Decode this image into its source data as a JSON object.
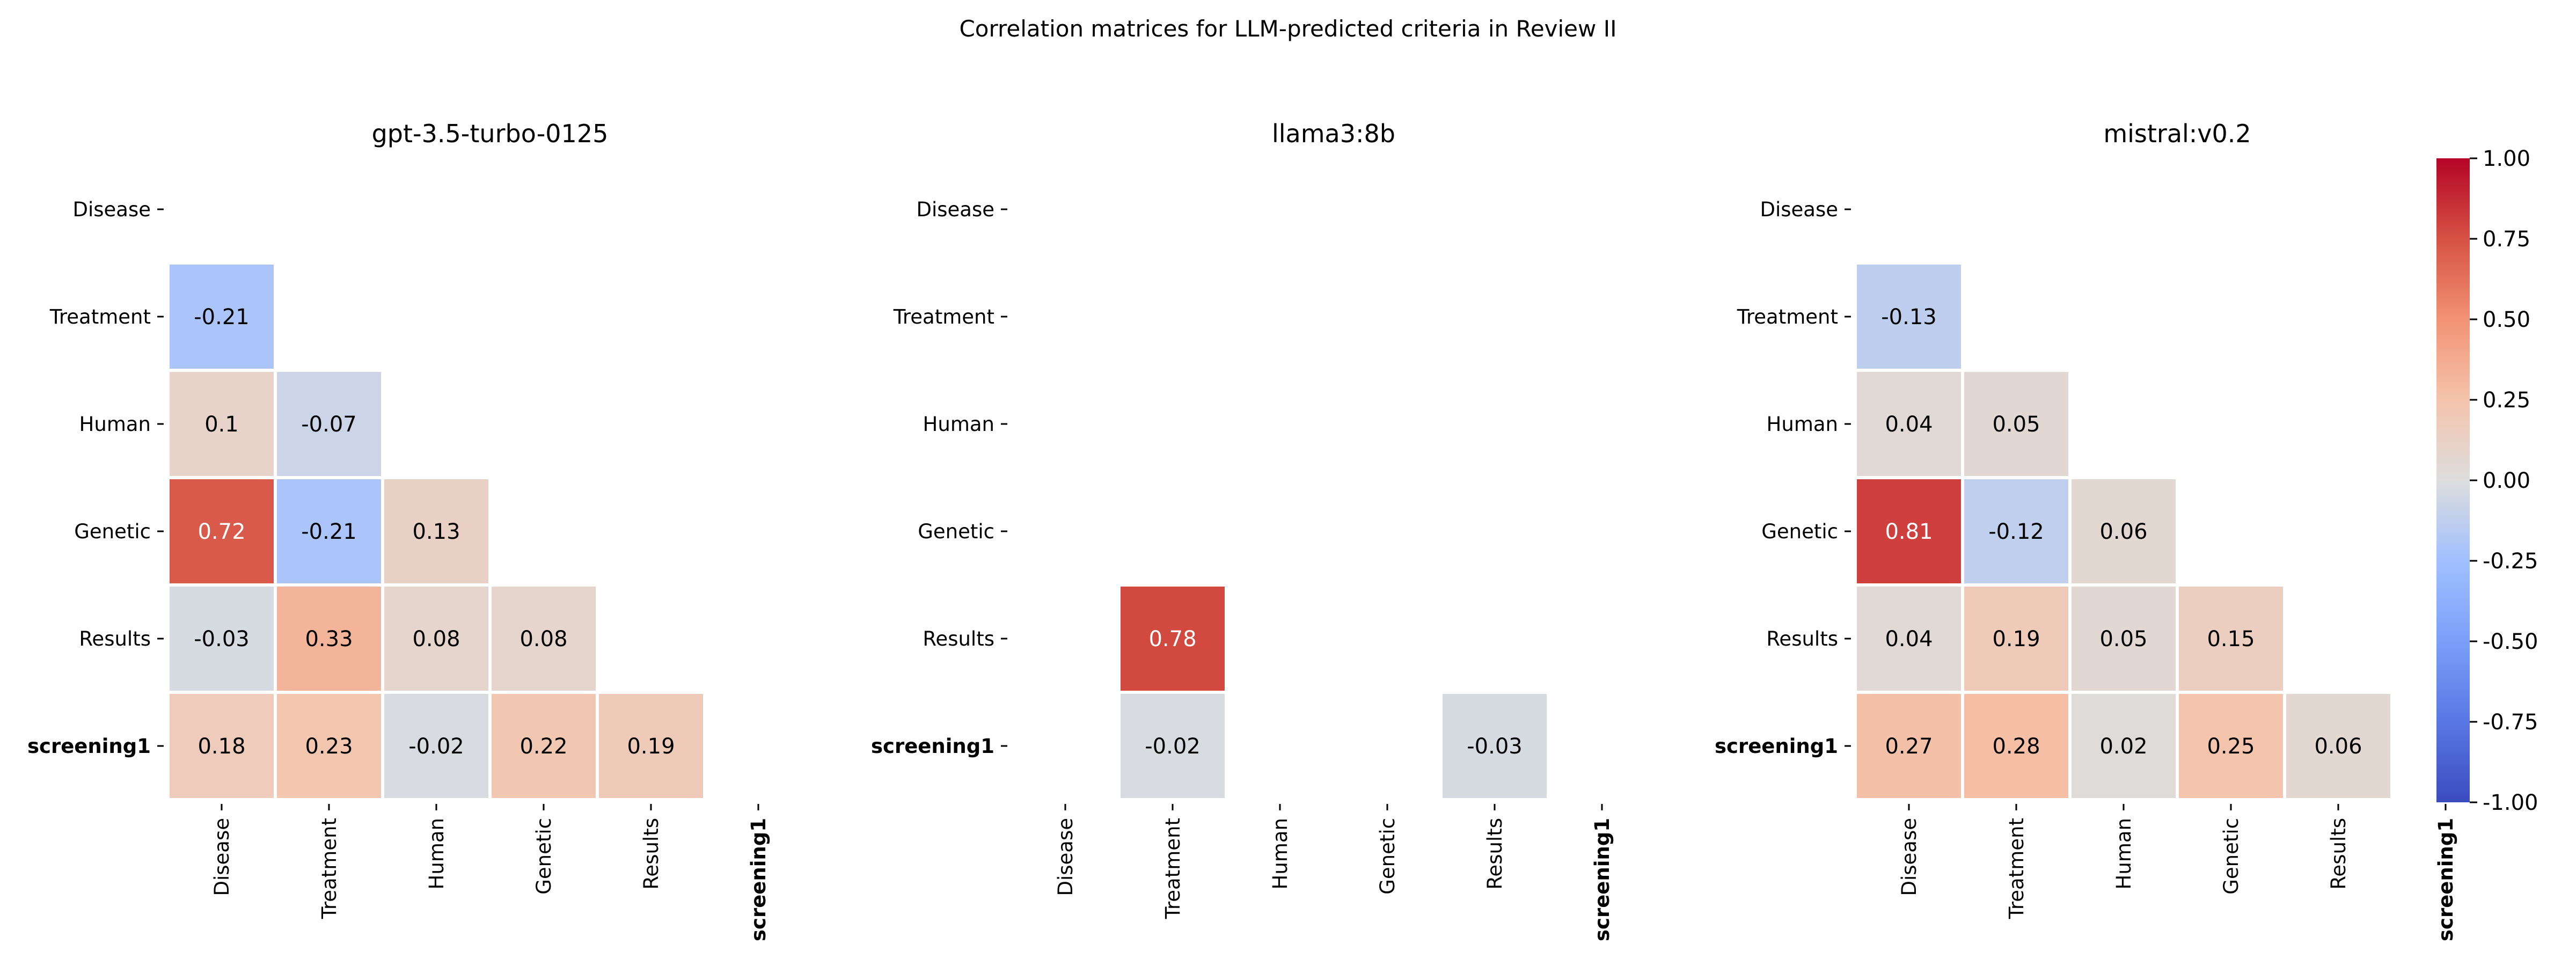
{
  "figure": {
    "title": "Correlation matrices for LLM-predicted criteria in Review II"
  },
  "chart_data": [
    {
      "type": "heatmap",
      "title": "gpt-3.5-turbo-0125",
      "rows": [
        "Disease",
        "Treatment",
        "Human",
        "Genetic",
        "Results",
        "screening1"
      ],
      "columns": [
        "Disease",
        "Treatment",
        "Human",
        "Genetic",
        "Results",
        "screening1"
      ],
      "mask": "upper-triangle-including-diagonal",
      "values": [
        [
          null,
          null,
          null,
          null,
          null,
          null
        ],
        [
          -0.21,
          null,
          null,
          null,
          null,
          null
        ],
        [
          0.1,
          -0.07,
          null,
          null,
          null,
          null
        ],
        [
          0.72,
          -0.21,
          0.13,
          null,
          null,
          null
        ],
        [
          -0.03,
          0.33,
          0.08,
          0.08,
          null,
          null
        ],
        [
          0.18,
          0.23,
          -0.02,
          0.22,
          0.19,
          null
        ]
      ],
      "bold_labels": [
        "screening1"
      ]
    },
    {
      "type": "heatmap",
      "title": "llama3:8b",
      "rows": [
        "Disease",
        "Treatment",
        "Human",
        "Genetic",
        "Results",
        "screening1"
      ],
      "columns": [
        "Disease",
        "Treatment",
        "Human",
        "Genetic",
        "Results",
        "screening1"
      ],
      "mask": "upper-triangle-including-diagonal",
      "values": [
        [
          null,
          null,
          null,
          null,
          null,
          null
        ],
        [
          null,
          null,
          null,
          null,
          null,
          null
        ],
        [
          null,
          null,
          null,
          null,
          null,
          null
        ],
        [
          null,
          null,
          null,
          null,
          null,
          null
        ],
        [
          null,
          0.78,
          null,
          null,
          null,
          null
        ],
        [
          null,
          -0.02,
          null,
          null,
          -0.03,
          null
        ]
      ],
      "bold_labels": [
        "screening1"
      ]
    },
    {
      "type": "heatmap",
      "title": "mistral:v0.2",
      "rows": [
        "Disease",
        "Treatment",
        "Human",
        "Genetic",
        "Results",
        "screening1"
      ],
      "columns": [
        "Disease",
        "Treatment",
        "Human",
        "Genetic",
        "Results",
        "screening1"
      ],
      "mask": "upper-triangle-including-diagonal",
      "values": [
        [
          null,
          null,
          null,
          null,
          null,
          null
        ],
        [
          -0.13,
          null,
          null,
          null,
          null,
          null
        ],
        [
          0.04,
          0.05,
          null,
          null,
          null,
          null
        ],
        [
          0.81,
          -0.12,
          0.06,
          null,
          null,
          null
        ],
        [
          0.04,
          0.19,
          0.05,
          0.15,
          null,
          null
        ],
        [
          0.27,
          0.28,
          0.02,
          0.25,
          0.06,
          null
        ]
      ],
      "bold_labels": [
        "screening1"
      ]
    }
  ],
  "colorbar": {
    "colormap": "coolwarm",
    "vmin": -1.0,
    "vmax": 1.0,
    "ticks": [
      "1.00",
      "0.75",
      "0.50",
      "0.25",
      "0.00",
      "-0.25",
      "-0.50",
      "-0.75",
      "-1.00"
    ],
    "colors": {
      "low": "#3b4cc0",
      "mid": "#dddddd",
      "high": "#b40426"
    }
  }
}
